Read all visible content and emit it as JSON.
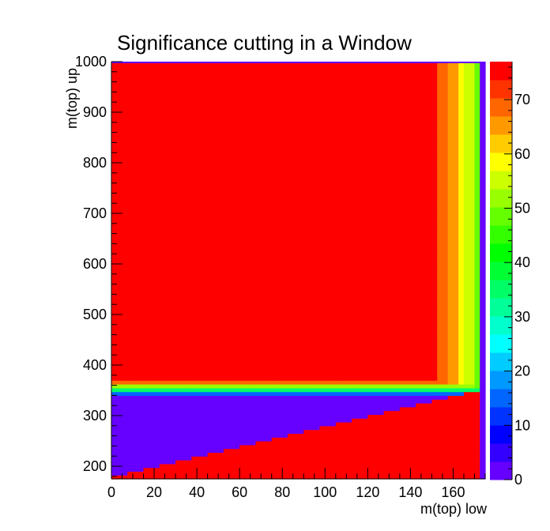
{
  "chart_data": {
    "type": "heatmap",
    "title": "Significance cutting in a Window",
    "xlabel": "m(top) low",
    "ylabel": "m(top) up",
    "xlim": [
      0,
      175
    ],
    "ylim": [
      175,
      1000
    ],
    "zlim": [
      0,
      77
    ],
    "xticks": [
      0,
      20,
      40,
      60,
      80,
      100,
      120,
      140,
      160
    ],
    "yticks": [
      200,
      300,
      400,
      500,
      600,
      700,
      800,
      900,
      1000
    ],
    "zticks": [
      0,
      10,
      20,
      30,
      40,
      50,
      60,
      70
    ],
    "palette": [
      "#6600ff",
      "#3300ff",
      "#0000ff",
      "#0033ff",
      "#0066ff",
      "#0099ff",
      "#00ccff",
      "#00ffff",
      "#00ffcc",
      "#00ff99",
      "#00ff66",
      "#00ff33",
      "#00ff00",
      "#33ff00",
      "#66ff00",
      "#99ff00",
      "#ccff00",
      "#ffff00",
      "#ffcc00",
      "#ff9900",
      "#ff6600",
      "#ff3300",
      "#ff0000"
    ],
    "description_values": {
      "plateau_value": 77,
      "below_diagonal_value": 77,
      "low_band_value": 3,
      "empty_upper_lt_lower": 0
    }
  }
}
